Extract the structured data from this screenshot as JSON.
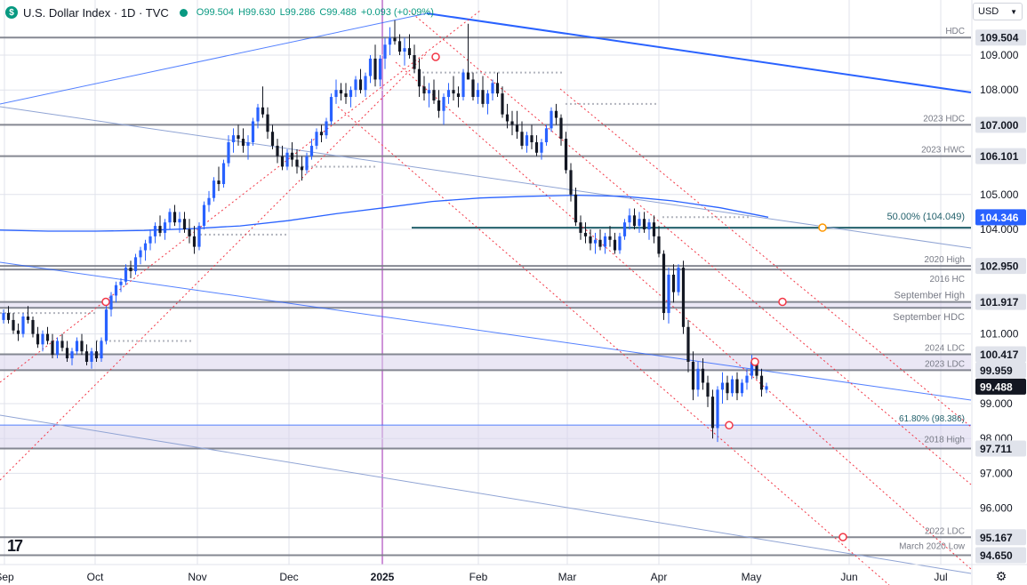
{
  "header": {
    "symbol": "U.S. Dollar Index · 1D · TVC",
    "open": "O99.504",
    "high": "H99.630",
    "low": "L99.286",
    "close": "C99.488",
    "change": "+0.093 (+0.09%)"
  },
  "currency": "USD",
  "colors": {
    "up": "#2962ff",
    "down": "#131722",
    "grid": "#e0e3eb",
    "level": "#787b86",
    "channel": "#f23645",
    "trend": "#2962ff",
    "zone": "#d9d4ec",
    "vline": "#9c27b0",
    "fib": "#000000"
  },
  "chart_data": {
    "type": "candlestick",
    "y_axis_range": [
      94.5,
      110.7
    ],
    "x_axis_ticks": [
      "Sep",
      "Oct",
      "Nov",
      "Dec",
      "2025",
      "Feb",
      "Mar",
      "Apr",
      "May",
      "Jun",
      "Jul"
    ],
    "y_axis_ticks": [
      "109.000",
      "108.000",
      "105.000",
      "104.000",
      "101.000",
      "99.000",
      "98.000",
      "97.000",
      "96.000"
    ],
    "price_labels": [
      {
        "value": 109.504,
        "text": "109.504"
      },
      {
        "value": 107.0,
        "text": "107.000"
      },
      {
        "value": 106.101,
        "text": "106.101"
      },
      {
        "value": 104.346,
        "text": "104.346",
        "current_ma": true
      },
      {
        "value": 102.95,
        "text": "102.950"
      },
      {
        "value": 101.917,
        "text": "101.917"
      },
      {
        "value": 100.417,
        "text": "100.417"
      },
      {
        "value": 99.959,
        "text": "99.959"
      },
      {
        "value": 99.488,
        "text": "99.488",
        "last": true
      },
      {
        "value": 97.711,
        "text": "97.711"
      },
      {
        "value": 95.167,
        "text": "95.167"
      },
      {
        "value": 94.65,
        "text": "94.650"
      }
    ],
    "horizontal_levels": [
      {
        "value": 109.504,
        "label": "HDC"
      },
      {
        "value": 107.0,
        "label": "2023 HDC"
      },
      {
        "value": 106.101,
        "label": "2023 HWC"
      },
      {
        "value": 102.95,
        "label": "2020 High"
      },
      {
        "value": 102.85,
        "label": "2016 HC"
      },
      {
        "value": 101.917,
        "label": "September High"
      },
      {
        "value": 101.75,
        "label": "September HDC"
      },
      {
        "value": 100.417,
        "label": "2024 LDC"
      },
      {
        "value": 99.959,
        "label": "2023 LDC"
      },
      {
        "value": 98.386,
        "label": "61.80% (98.386)"
      },
      {
        "value": 97.711,
        "label": "2018 High"
      },
      {
        "value": 95.167,
        "label": "2022 LDC"
      },
      {
        "value": 94.65,
        "label": "March 2020 Low"
      }
    ],
    "fib_50": {
      "value": 104.049,
      "label": "50.00% (104.049)"
    },
    "zones": [
      [
        99.959,
        100.417
      ],
      [
        97.711,
        98.386
      ],
      [
        101.75,
        101.917
      ]
    ],
    "series": [
      {
        "name": "DXY daily candles (approx.)",
        "ohlc": [
          [
            101.4,
            101.7,
            101.3,
            101.6
          ],
          [
            101.6,
            101.8,
            101.3,
            101.4
          ],
          [
            101.4,
            101.6,
            101.0,
            101.1
          ],
          [
            101.1,
            101.3,
            100.8,
            101.0
          ],
          [
            101.0,
            101.6,
            100.9,
            101.5
          ],
          [
            101.5,
            101.8,
            101.3,
            101.4
          ],
          [
            101.4,
            101.5,
            100.9,
            101.0
          ],
          [
            101.0,
            101.2,
            100.6,
            100.7
          ],
          [
            100.7,
            101.1,
            100.5,
            101.0
          ],
          [
            101.0,
            101.2,
            100.7,
            100.8
          ],
          [
            100.8,
            101.0,
            100.3,
            100.4
          ],
          [
            100.4,
            100.9,
            100.3,
            100.8
          ],
          [
            100.8,
            101.0,
            100.5,
            100.6
          ],
          [
            100.6,
            100.8,
            100.2,
            100.3
          ],
          [
            100.3,
            100.6,
            100.1,
            100.5
          ],
          [
            100.5,
            100.9,
            100.4,
            100.8
          ],
          [
            100.8,
            101.0,
            100.4,
            100.5
          ],
          [
            100.5,
            100.7,
            100.1,
            100.2
          ],
          [
            100.2,
            100.6,
            100.0,
            100.5
          ],
          [
            100.5,
            100.8,
            100.2,
            100.3
          ],
          [
            100.3,
            100.9,
            100.2,
            100.8
          ],
          [
            100.8,
            101.9,
            100.7,
            101.7
          ],
          [
            101.7,
            102.2,
            101.5,
            102.1
          ],
          [
            102.1,
            102.5,
            101.9,
            102.4
          ],
          [
            102.4,
            102.6,
            102.2,
            102.5
          ],
          [
            102.5,
            103.0,
            102.4,
            102.9
          ],
          [
            102.9,
            103.1,
            102.6,
            102.8
          ],
          [
            102.8,
            103.3,
            102.7,
            103.2
          ],
          [
            103.2,
            103.5,
            103.0,
            103.4
          ],
          [
            103.4,
            103.7,
            103.1,
            103.6
          ],
          [
            103.6,
            104.0,
            103.4,
            103.8
          ],
          [
            103.8,
            104.2,
            103.6,
            104.1
          ],
          [
            104.1,
            104.4,
            103.8,
            103.9
          ],
          [
            103.9,
            104.3,
            103.7,
            104.2
          ],
          [
            104.2,
            104.6,
            104.0,
            104.5
          ],
          [
            104.5,
            104.7,
            104.1,
            104.2
          ],
          [
            104.2,
            104.5,
            103.9,
            104.3
          ],
          [
            104.3,
            104.5,
            103.9,
            104.0
          ],
          [
            104.0,
            104.3,
            103.6,
            103.8
          ],
          [
            103.8,
            104.1,
            103.3,
            103.5
          ],
          [
            103.5,
            104.2,
            103.4,
            104.1
          ],
          [
            104.1,
            104.8,
            104.0,
            104.7
          ],
          [
            104.7,
            105.1,
            104.5,
            104.9
          ],
          [
            104.9,
            105.5,
            104.8,
            105.4
          ],
          [
            105.4,
            105.8,
            105.1,
            105.3
          ],
          [
            105.3,
            106.0,
            105.2,
            105.9
          ],
          [
            105.9,
            106.7,
            105.8,
            106.5
          ],
          [
            106.5,
            106.9,
            106.2,
            106.7
          ],
          [
            106.7,
            107.0,
            106.4,
            106.6
          ],
          [
            106.6,
            106.9,
            106.2,
            106.4
          ],
          [
            106.4,
            106.7,
            106.0,
            106.5
          ],
          [
            106.5,
            107.2,
            106.4,
            107.1
          ],
          [
            107.1,
            107.6,
            106.9,
            107.5
          ],
          [
            107.5,
            108.1,
            107.2,
            107.3
          ],
          [
            107.3,
            107.5,
            106.6,
            106.8
          ],
          [
            106.8,
            107.0,
            106.3,
            106.4
          ],
          [
            106.4,
            106.6,
            105.9,
            106.1
          ],
          [
            106.1,
            106.4,
            105.7,
            105.8
          ],
          [
            105.8,
            106.3,
            105.7,
            106.2
          ],
          [
            106.2,
            106.5,
            105.8,
            106.0
          ],
          [
            106.0,
            106.3,
            105.6,
            105.8
          ],
          [
            105.8,
            106.1,
            105.4,
            105.7
          ],
          [
            105.7,
            106.2,
            105.6,
            106.1
          ],
          [
            106.1,
            106.6,
            106.0,
            106.4
          ],
          [
            106.4,
            106.9,
            106.3,
            106.8
          ],
          [
            106.8,
            107.0,
            106.5,
            106.7
          ],
          [
            106.7,
            107.2,
            106.6,
            107.1
          ],
          [
            107.1,
            107.9,
            107.0,
            107.8
          ],
          [
            107.8,
            108.3,
            107.6,
            108.0
          ],
          [
            108.0,
            108.2,
            107.7,
            107.9
          ],
          [
            107.9,
            108.2,
            107.6,
            107.8
          ],
          [
            107.8,
            108.1,
            107.5,
            108.0
          ],
          [
            108.0,
            108.4,
            107.8,
            108.3
          ],
          [
            108.3,
            108.6,
            107.9,
            108.0
          ],
          [
            108.0,
            108.5,
            107.8,
            108.4
          ],
          [
            108.4,
            109.0,
            108.2,
            108.9
          ],
          [
            108.9,
            109.3,
            108.1,
            108.3
          ],
          [
            108.3,
            109.0,
            108.1,
            108.9
          ],
          [
            108.9,
            109.5,
            108.6,
            109.3
          ],
          [
            109.3,
            109.8,
            109.0,
            109.5
          ],
          [
            109.5,
            110.0,
            109.3,
            109.4
          ],
          [
            109.4,
            109.6,
            109.0,
            109.1
          ],
          [
            109.1,
            109.5,
            108.7,
            109.2
          ],
          [
            109.2,
            109.6,
            108.9,
            109.0
          ],
          [
            109.0,
            109.3,
            108.5,
            108.6
          ],
          [
            108.6,
            108.9,
            107.8,
            108.1
          ],
          [
            108.1,
            108.4,
            107.7,
            107.9
          ],
          [
            107.9,
            108.2,
            107.5,
            108.0
          ],
          [
            108.0,
            108.3,
            107.6,
            107.7
          ],
          [
            107.7,
            108.0,
            107.2,
            107.4
          ],
          [
            107.4,
            107.9,
            107.0,
            107.8
          ],
          [
            107.8,
            108.2,
            107.6,
            108.0
          ],
          [
            108.0,
            108.4,
            107.7,
            107.9
          ],
          [
            107.9,
            108.1,
            107.5,
            107.8
          ],
          [
            107.8,
            108.6,
            107.7,
            108.5
          ],
          [
            108.5,
            109.9,
            108.3,
            108.3
          ],
          [
            108.3,
            108.5,
            107.7,
            107.8
          ],
          [
            107.8,
            108.2,
            107.6,
            108.0
          ],
          [
            108.0,
            108.4,
            107.5,
            107.6
          ],
          [
            107.6,
            108.0,
            107.3,
            107.9
          ],
          [
            107.9,
            108.3,
            107.7,
            108.2
          ],
          [
            108.2,
            108.5,
            107.8,
            107.9
          ],
          [
            107.9,
            108.1,
            107.2,
            107.3
          ],
          [
            107.3,
            107.6,
            106.9,
            107.1
          ],
          [
            107.1,
            107.4,
            106.7,
            107.0
          ],
          [
            107.0,
            107.4,
            106.6,
            106.8
          ],
          [
            106.8,
            107.1,
            106.3,
            106.4
          ],
          [
            106.4,
            106.8,
            106.2,
            106.7
          ],
          [
            106.7,
            107.0,
            106.3,
            106.5
          ],
          [
            106.5,
            106.7,
            106.1,
            106.2
          ],
          [
            106.2,
            106.6,
            106.0,
            106.5
          ],
          [
            106.5,
            107.0,
            106.4,
            106.9
          ],
          [
            106.9,
            107.5,
            106.8,
            107.4
          ],
          [
            107.4,
            107.6,
            107.0,
            107.2
          ],
          [
            107.2,
            107.3,
            106.4,
            106.6
          ],
          [
            106.6,
            106.8,
            105.6,
            105.7
          ],
          [
            105.7,
            105.9,
            104.8,
            105.0
          ],
          [
            105.0,
            105.2,
            104.1,
            104.2
          ],
          [
            104.2,
            104.4,
            103.7,
            103.9
          ],
          [
            103.9,
            104.2,
            103.6,
            103.8
          ],
          [
            103.8,
            104.0,
            103.4,
            103.6
          ],
          [
            103.6,
            103.9,
            103.3,
            103.7
          ],
          [
            103.7,
            104.0,
            103.4,
            103.5
          ],
          [
            103.5,
            103.9,
            103.3,
            103.8
          ],
          [
            103.8,
            104.1,
            103.5,
            103.7
          ],
          [
            103.7,
            103.9,
            103.3,
            103.4
          ],
          [
            103.4,
            103.9,
            103.3,
            103.8
          ],
          [
            103.8,
            104.3,
            103.7,
            104.2
          ],
          [
            104.2,
            104.6,
            104.0,
            104.4
          ],
          [
            104.4,
            104.6,
            104.0,
            104.1
          ],
          [
            104.1,
            104.5,
            103.9,
            104.3
          ],
          [
            104.3,
            104.5,
            103.9,
            104.0
          ],
          [
            104.0,
            104.3,
            103.7,
            104.2
          ],
          [
            104.2,
            104.4,
            103.6,
            103.8
          ],
          [
            103.8,
            104.1,
            103.2,
            103.3
          ],
          [
            103.3,
            103.4,
            101.4,
            101.6
          ],
          [
            101.6,
            102.9,
            101.3,
            102.7
          ],
          [
            102.7,
            103.0,
            101.9,
            102.2
          ],
          [
            102.2,
            103.0,
            102.1,
            102.9
          ],
          [
            102.9,
            103.1,
            101.0,
            101.2
          ],
          [
            101.2,
            101.4,
            99.9,
            100.2
          ],
          [
            100.2,
            100.5,
            99.1,
            99.4
          ],
          [
            99.4,
            100.2,
            99.2,
            100.0
          ],
          [
            100.0,
            100.3,
            99.4,
            99.6
          ],
          [
            99.6,
            99.8,
            98.9,
            99.2
          ],
          [
            99.2,
            99.4,
            98.0,
            98.3
          ],
          [
            98.3,
            99.5,
            97.9,
            99.4
          ],
          [
            99.4,
            99.9,
            99.0,
            99.6
          ],
          [
            99.6,
            99.8,
            99.1,
            99.3
          ],
          [
            99.3,
            99.8,
            99.2,
            99.7
          ],
          [
            99.7,
            99.9,
            99.1,
            99.3
          ],
          [
            99.3,
            99.7,
            99.2,
            99.6
          ],
          [
            99.6,
            100.0,
            99.4,
            99.8
          ],
          [
            99.8,
            100.4,
            99.7,
            100.2
          ],
          [
            100.2,
            100.3,
            99.7,
            99.8
          ],
          [
            99.8,
            100.0,
            99.2,
            99.4
          ],
          [
            99.4,
            99.6,
            99.3,
            99.5
          ]
        ]
      },
      {
        "name": "200-day moving average",
        "values": [
          103.98,
          103.95,
          103.95,
          103.97,
          104.02,
          104.1,
          104.25,
          104.45,
          104.62,
          104.8,
          104.9,
          104.95,
          104.98,
          104.95,
          104.82,
          104.62,
          104.35
        ]
      }
    ]
  }
}
